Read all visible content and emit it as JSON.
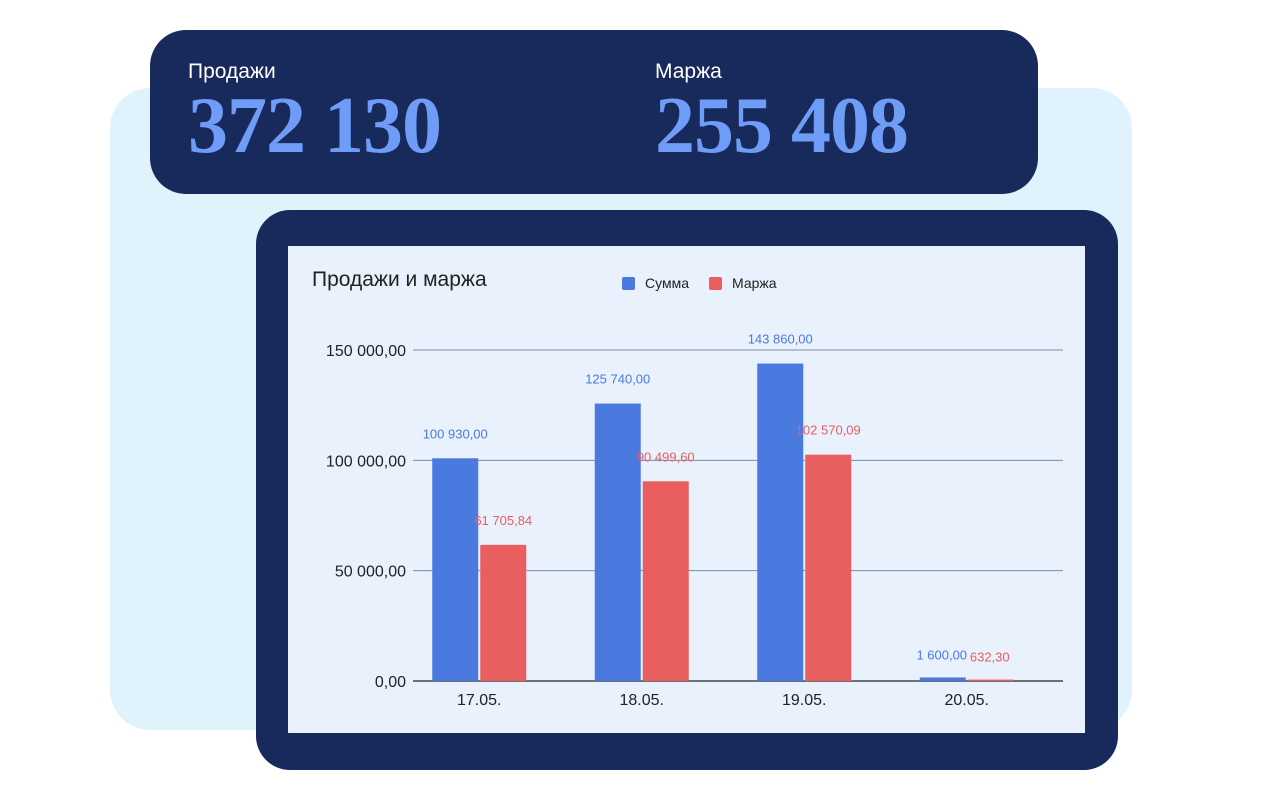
{
  "kpis": [
    {
      "label": "Продажи",
      "value": "372 130"
    },
    {
      "label": "Маржа",
      "value": "255 408"
    }
  ],
  "colors": {
    "navy": "#18295b",
    "kpi_value": "#6e9cf6",
    "light_panel": "#e0f3fd",
    "chart_bg": "#e9f1fc",
    "series_sum": "#4a7ae0",
    "series_margin": "#e95f5f"
  },
  "chart_data": {
    "type": "bar",
    "title": "Продажи и маржа",
    "categories": [
      "17.05.",
      "18.05.",
      "19.05.",
      "20.05."
    ],
    "series": [
      {
        "name": "Сумма",
        "color": "#4a7ae0",
        "values": [
          100930,
          125740,
          143860,
          1600
        ],
        "labels": [
          "100 930,00",
          "125 740,00",
          "143 860,00",
          "1 600,00"
        ]
      },
      {
        "name": "Маржа",
        "color": "#e95f5f",
        "values": [
          61705.84,
          90499.6,
          102570.09,
          632.3
        ],
        "labels": [
          "61 705,84",
          "90 499,60",
          "102 570,09",
          "632,30"
        ]
      }
    ],
    "yticks": [
      0,
      50000,
      100000,
      150000
    ],
    "ytick_labels": [
      "0,00",
      "50 000,00",
      "100 000,00",
      "150 000,00"
    ],
    "ylim": [
      0,
      150000
    ],
    "grid": true,
    "legend_position": "top"
  }
}
